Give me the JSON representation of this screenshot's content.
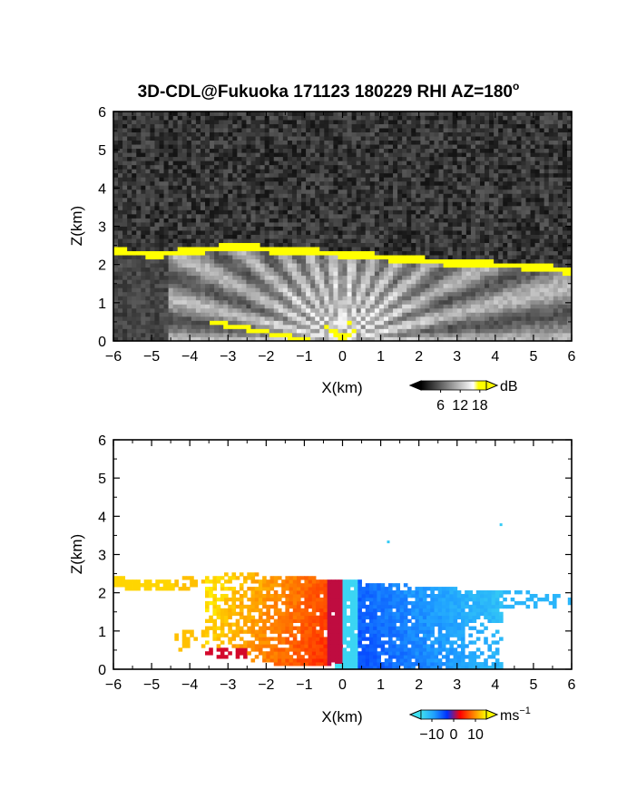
{
  "title": "3D-CDL@Fukuoka 171123 180229 RHI AZ=180",
  "title_sup": "o",
  "chart_data": [
    {
      "type": "heatmap",
      "quantity": "backscatter intensity",
      "xlabel": "X(km)",
      "ylabel": "Z(km)",
      "xlim": [
        -6,
        6
      ],
      "ylim": [
        0,
        6
      ],
      "xticks": [
        -6,
        -5,
        -4,
        -3,
        -2,
        -1,
        0,
        1,
        2,
        3,
        4,
        5,
        6
      ],
      "yticks": [
        0,
        1,
        2,
        3,
        4,
        5,
        6
      ],
      "colorbar": {
        "unit": "dB",
        "ticks": [
          6,
          12,
          18
        ],
        "range": [
          0,
          20
        ],
        "colors": [
          "#000000",
          "#ffffff",
          "#ffff00"
        ]
      },
      "features": {
        "noise_level_db": 3,
        "cloud_base_layer": {
          "x": [
            -6,
            -5.3,
            -5.0,
            -4.6,
            -3.5,
            -3.0,
            -2.5,
            -2.0,
            -1.0,
            0,
            1.0,
            2.0,
            3.0,
            4.0,
            5.0,
            5.5,
            6.0
          ],
          "z": [
            2.35,
            2.3,
            2.25,
            2.3,
            2.4,
            2.45,
            2.5,
            2.4,
            2.35,
            2.28,
            2.2,
            2.12,
            2.05,
            2.0,
            1.95,
            1.9,
            1.82
          ],
          "db": 19
        },
        "ground_clutter": {
          "x": [
            -3.5,
            -2.5,
            -1.5,
            -0.8
          ],
          "z": [
            0.5,
            0.33,
            0.12,
            0.02
          ],
          "db": 19
        }
      }
    },
    {
      "type": "heatmap",
      "quantity": "radial velocity",
      "xlabel": "X(km)",
      "ylabel": "Z(km)",
      "xlim": [
        -6,
        6
      ],
      "ylim": [
        0,
        6
      ],
      "xticks": [
        -6,
        -5,
        -4,
        -3,
        -2,
        -1,
        0,
        1,
        2,
        3,
        4,
        5,
        6
      ],
      "yticks": [
        0,
        1,
        2,
        3,
        4,
        5,
        6
      ],
      "colorbar": {
        "unit": "ms",
        "unit_sup": "−1",
        "tick_labels": [
          "−10",
          "0",
          "10"
        ],
        "ticks": [
          -10,
          0,
          10
        ],
        "range": [
          -15,
          15
        ],
        "colors": [
          "#40e0f0",
          "#1fa0ff",
          "#0030ff",
          "#ff0000",
          "#ff8000",
          "#ffff00"
        ]
      },
      "features": {
        "flow_left_ms": 10,
        "flow_right_ms": -6,
        "isolated_points": [
          {
            "x": 4.15,
            "z": 3.78,
            "v": -13
          },
          {
            "x": 1.2,
            "z": 3.33,
            "v": -13
          }
        ]
      }
    }
  ]
}
